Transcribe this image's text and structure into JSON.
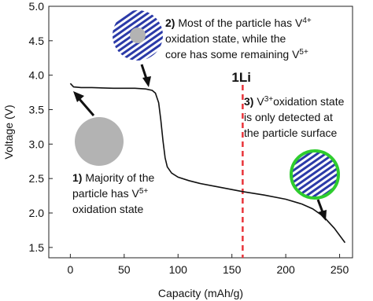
{
  "chart_data": {
    "type": "line",
    "x_label": "Capacity (mAh/g)",
    "y_label": "Voltage (V)",
    "xlim": [
      -20,
      262
    ],
    "ylim": [
      1.35,
      5.0
    ],
    "xticks": [
      0,
      50,
      100,
      150,
      200,
      250
    ],
    "yticks": [
      1.5,
      {
        "value": 2,
        "label": "2.0"
      },
      2.5,
      {
        "value": 3,
        "label": "3.0"
      },
      3.5,
      {
        "value": 4,
        "label": "4.0"
      },
      4.5,
      {
        "value": 5,
        "label": "5.0"
      }
    ],
    "series": [
      {
        "color": "#111111",
        "x": [
          0,
          3,
          10,
          20,
          40,
          60,
          70,
          76,
          79,
          82,
          84,
          86,
          88,
          90,
          94,
          100,
          110,
          120,
          140,
          160,
          180,
          200,
          215,
          225,
          235,
          245,
          255
        ],
        "values": [
          3.88,
          3.83,
          3.82,
          3.82,
          3.81,
          3.81,
          3.8,
          3.78,
          3.74,
          3.6,
          3.35,
          3.05,
          2.8,
          2.67,
          2.58,
          2.52,
          2.47,
          2.43,
          2.37,
          2.31,
          2.26,
          2.2,
          2.13,
          2.06,
          1.95,
          1.78,
          1.57
        ]
      }
    ],
    "marker_line": {
      "x": 160,
      "label": "1Li",
      "color": "#e8343a"
    },
    "annotations": [
      {
        "lines": [
          [
            {
              "text": "1)",
              "bold": true
            },
            {
              "text": " Majority of the"
            }
          ],
          [
            {
              "text": "particle has V"
            },
            {
              "text": "5+",
              "sup": true
            }
          ],
          [
            {
              "text": "oxidation state"
            }
          ]
        ]
      },
      {
        "lines": [
          [
            {
              "text": "2)",
              "bold": true
            },
            {
              "text": " Most of the particle has V"
            },
            {
              "text": "4+",
              "sup": true
            }
          ],
          [
            {
              "text": "oxidation state, while the"
            }
          ],
          [
            {
              "text": "core has some remaining V"
            },
            {
              "text": "5+",
              "sup": true
            }
          ]
        ]
      },
      {
        "lines": [
          [
            {
              "text": "3)",
              "bold": true
            },
            {
              "text": " V"
            },
            {
              "text": "3+",
              "sup": true
            },
            {
              "text": "oxidation state"
            }
          ],
          [
            {
              "text": "is only detected at"
            }
          ],
          [
            {
              "text": "the particle surface"
            }
          ]
        ]
      }
    ]
  }
}
